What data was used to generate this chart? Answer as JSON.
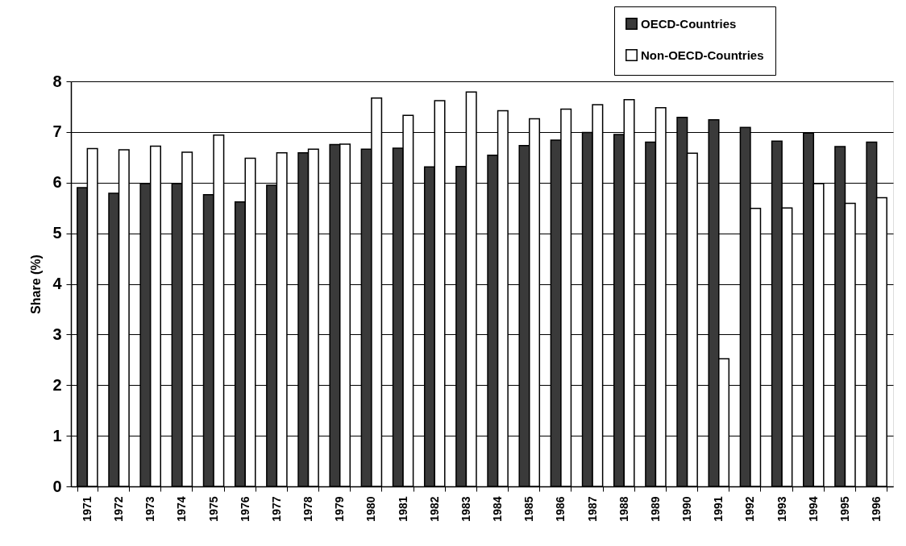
{
  "chart_data": {
    "type": "bar",
    "ylabel": "Share (%)",
    "categories": [
      "1971",
      "1972",
      "1973",
      "1974",
      "1975",
      "1976",
      "1977",
      "1978",
      "1979",
      "1980",
      "1981",
      "1982",
      "1983",
      "1984",
      "1985",
      "1986",
      "1987",
      "1988",
      "1989",
      "1990",
      "1991",
      "1992",
      "1993",
      "1994",
      "1995",
      "1996"
    ],
    "series": [
      {
        "name": "OECD-Countries",
        "color": "#3a3a3a",
        "values": [
          5.9,
          5.79,
          5.98,
          5.98,
          5.76,
          5.62,
          5.95,
          6.59,
          6.75,
          6.66,
          6.68,
          6.31,
          6.32,
          6.54,
          6.73,
          6.84,
          6.99,
          6.95,
          6.8,
          7.29,
          7.24,
          7.09,
          6.82,
          6.98,
          6.71,
          6.8
        ]
      },
      {
        "name": "Non-OECD-Countries",
        "color": "#ffffff",
        "values": [
          6.67,
          6.65,
          6.72,
          6.6,
          6.94,
          6.48,
          6.59,
          6.66,
          6.76,
          7.67,
          7.33,
          7.62,
          7.79,
          7.42,
          7.26,
          7.45,
          7.54,
          7.64,
          7.48,
          6.58,
          2.52,
          5.49,
          5.5,
          5.98,
          5.59,
          5.7
        ]
      }
    ],
    "ylim": [
      0,
      8
    ],
    "yticks": [
      0,
      1,
      2,
      3,
      4,
      5,
      6,
      7,
      8
    ],
    "grid": "y",
    "legend": "top right"
  }
}
